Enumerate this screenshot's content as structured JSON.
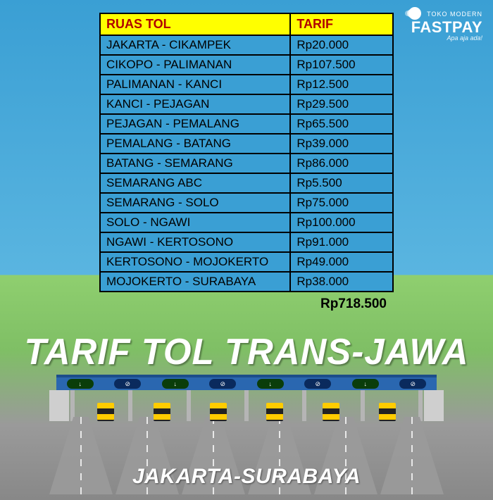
{
  "brand": {
    "top": "TOKO MODERN",
    "main": "FASTPAY",
    "tagline": "Apa aja ada!"
  },
  "table": {
    "header_route": "RUAS TOL",
    "header_tarif": "TARIF",
    "header_bg": "#ffff00",
    "header_fg": "#b00000",
    "cell_bg": "#3a9fd4",
    "border": "#000000",
    "rows": [
      {
        "route": "JAKARTA - CIKAMPEK",
        "tarif": "Rp20.000"
      },
      {
        "route": "CIKOPO - PALIMANAN",
        "tarif": "Rp107.500"
      },
      {
        "route": "PALIMANAN - KANCI",
        "tarif": "Rp12.500"
      },
      {
        "route": "KANCI - PEJAGAN",
        "tarif": "Rp29.500"
      },
      {
        "route": "PEJAGAN - PEMALANG",
        "tarif": "Rp65.500"
      },
      {
        "route": "PEMALANG - BATANG",
        "tarif": "Rp39.000"
      },
      {
        "route": "BATANG - SEMARANG",
        "tarif": "Rp86.000"
      },
      {
        "route": "SEMARANG ABC",
        "tarif": "Rp5.500"
      },
      {
        "route": "SEMARANG - SOLO",
        "tarif": "Rp75.000"
      },
      {
        "route": "SOLO - NGAWI",
        "tarif": "Rp100.000"
      },
      {
        "route": "NGAWI - KERTOSONO",
        "tarif": "Rp91.000"
      },
      {
        "route": "KERTOSONO - MOJOKERTO",
        "tarif": "Rp49.000"
      },
      {
        "route": "MOJOKERTO - SURABAYA",
        "tarif": "Rp38.000"
      }
    ],
    "total": "Rp718.500"
  },
  "title": "TARIF TOL TRANS-JAWA",
  "subtitle": "JAKARTA-SURABAYA",
  "colors": {
    "sky": "#3a9fd4",
    "grass": "#8fcf6f",
    "road": "#9a9a9a",
    "canopy": "#2a67b0",
    "text_white": "#ffffff"
  },
  "signs": [
    "↓",
    "⊘",
    "↓",
    "⊘",
    "↓",
    "⊘",
    "↓",
    "⊘"
  ]
}
